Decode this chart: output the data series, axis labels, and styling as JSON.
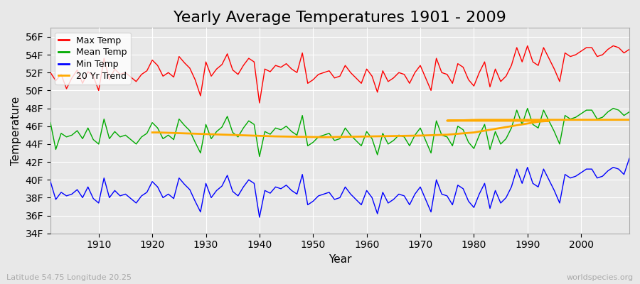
{
  "title": "Yearly Average Temperatures 1901 - 2009",
  "xlabel": "Year",
  "ylabel": "Temperature",
  "bg_color": "#e8e8e8",
  "plot_bg_color": "#e8e8e8",
  "grid_color": "#ffffff",
  "title_fontsize": 16,
  "axis_fontsize": 11,
  "tick_fontsize": 10,
  "legend_labels": [
    "Max Temp",
    "Mean Temp",
    "Min Temp",
    "20 Yr Trend"
  ],
  "legend_colors": [
    "#ff0000",
    "#00aa00",
    "#0000ff",
    "#ffaa00"
  ],
  "ylim": [
    34,
    57
  ],
  "yticks": [
    34,
    36,
    38,
    40,
    42,
    44,
    46,
    48,
    50,
    52,
    54,
    56
  ],
  "ytick_labels": [
    "34F",
    "36F",
    "38F",
    "40F",
    "42F",
    "44F",
    "46F",
    "48F",
    "50F",
    "52F",
    "54F",
    "56F"
  ],
  "xlim": [
    1901,
    2009
  ],
  "xticks": [
    1910,
    1920,
    1930,
    1940,
    1950,
    1960,
    1970,
    1980,
    1990,
    2000
  ],
  "years": [
    1901,
    1902,
    1903,
    1904,
    1905,
    1906,
    1907,
    1908,
    1909,
    1910,
    1911,
    1912,
    1913,
    1914,
    1915,
    1916,
    1917,
    1918,
    1919,
    1920,
    1921,
    1922,
    1923,
    1924,
    1925,
    1926,
    1927,
    1928,
    1929,
    1930,
    1931,
    1932,
    1933,
    1934,
    1935,
    1936,
    1937,
    1938,
    1939,
    1940,
    1941,
    1942,
    1943,
    1944,
    1945,
    1946,
    1947,
    1948,
    1949,
    1950,
    1951,
    1952,
    1953,
    1954,
    1955,
    1956,
    1957,
    1958,
    1959,
    1960,
    1961,
    1962,
    1963,
    1964,
    1965,
    1966,
    1967,
    1968,
    1969,
    1970,
    1971,
    1972,
    1973,
    1974,
    1975,
    1976,
    1977,
    1978,
    1979,
    1980,
    1981,
    1982,
    1983,
    1984,
    1985,
    1986,
    1987,
    1988,
    1989,
    1990,
    1991,
    1992,
    1993,
    1994,
    1995,
    1996,
    1997,
    1998,
    1999,
    2000,
    2001,
    2002,
    2003,
    2004,
    2005,
    2006,
    2007,
    2008,
    2009
  ],
  "max_temp": [
    52.0,
    51.1,
    51.8,
    50.2,
    51.4,
    52.3,
    50.8,
    52.1,
    51.6,
    50.0,
    53.6,
    51.2,
    52.4,
    51.8,
    52.0,
    51.5,
    51.0,
    51.8,
    52.2,
    53.4,
    52.8,
    51.6,
    52.0,
    51.5,
    53.8,
    53.1,
    52.5,
    51.2,
    49.4,
    53.2,
    51.6,
    52.4,
    52.9,
    54.1,
    52.3,
    51.8,
    52.8,
    53.6,
    53.2,
    48.6,
    52.4,
    52.1,
    52.8,
    52.6,
    53.0,
    52.4,
    52.0,
    54.2,
    50.8,
    51.2,
    51.8,
    52.0,
    52.2,
    51.4,
    51.6,
    52.8,
    52.0,
    51.4,
    50.8,
    52.4,
    51.6,
    49.8,
    52.2,
    51.0,
    51.4,
    52.0,
    51.8,
    50.8,
    52.0,
    52.8,
    51.4,
    50.0,
    53.6,
    52.0,
    51.8,
    50.8,
    53.0,
    52.6,
    51.2,
    50.5,
    52.0,
    53.2,
    50.4,
    52.4,
    51.0,
    51.6,
    52.8,
    54.8,
    53.2,
    55.0,
    53.2,
    52.8,
    54.8,
    53.6,
    52.4,
    51.0,
    54.2,
    53.8,
    54.0,
    54.4,
    54.8,
    54.8,
    53.8,
    54.0,
    54.6,
    55.0,
    54.8,
    54.2,
    54.6
  ],
  "mean_temp": [
    46.4,
    43.4,
    45.2,
    44.8,
    45.0,
    45.5,
    44.6,
    45.8,
    44.5,
    44.0,
    46.8,
    44.6,
    45.4,
    44.8,
    45.0,
    44.5,
    44.0,
    44.8,
    45.2,
    46.4,
    45.8,
    44.6,
    45.0,
    44.5,
    46.8,
    46.1,
    45.5,
    44.2,
    43.0,
    46.2,
    44.6,
    45.4,
    45.9,
    47.1,
    45.3,
    44.8,
    45.8,
    46.6,
    46.2,
    42.6,
    45.4,
    45.1,
    45.8,
    45.6,
    46.0,
    45.4,
    45.0,
    47.2,
    43.8,
    44.2,
    44.8,
    45.0,
    45.2,
    44.4,
    44.6,
    45.8,
    45.0,
    44.4,
    43.8,
    45.4,
    44.6,
    42.8,
    45.2,
    44.0,
    44.4,
    45.0,
    44.8,
    43.8,
    45.0,
    45.8,
    44.4,
    43.0,
    46.6,
    45.0,
    44.8,
    43.8,
    46.0,
    45.6,
    44.2,
    43.5,
    45.0,
    46.2,
    43.4,
    45.4,
    44.0,
    44.6,
    45.8,
    47.8,
    46.2,
    48.0,
    46.2,
    45.8,
    47.8,
    46.6,
    45.4,
    44.0,
    47.2,
    46.8,
    47.0,
    47.4,
    47.8,
    47.8,
    46.8,
    47.0,
    47.6,
    48.0,
    47.8,
    47.2,
    47.6
  ],
  "min_temp": [
    39.8,
    37.8,
    38.6,
    38.2,
    38.4,
    38.9,
    38.0,
    39.2,
    37.9,
    37.4,
    40.2,
    38.0,
    38.8,
    38.2,
    38.4,
    37.9,
    37.4,
    38.2,
    38.6,
    39.8,
    39.2,
    38.0,
    38.4,
    37.9,
    40.2,
    39.5,
    38.9,
    37.6,
    36.4,
    39.6,
    38.0,
    38.8,
    39.3,
    40.5,
    38.7,
    38.2,
    39.2,
    40.0,
    39.6,
    35.8,
    38.8,
    38.5,
    39.2,
    39.0,
    39.4,
    38.8,
    38.4,
    40.6,
    37.2,
    37.6,
    38.2,
    38.4,
    38.6,
    37.8,
    38.0,
    39.2,
    38.4,
    37.8,
    37.2,
    38.8,
    38.0,
    36.2,
    38.6,
    37.4,
    37.8,
    38.4,
    38.2,
    37.2,
    38.4,
    39.2,
    37.8,
    36.4,
    40.0,
    38.4,
    38.2,
    37.2,
    39.4,
    39.0,
    37.6,
    36.9,
    38.4,
    39.6,
    36.8,
    38.8,
    37.4,
    38.0,
    39.2,
    41.2,
    39.6,
    41.4,
    39.6,
    39.2,
    41.2,
    40.0,
    38.8,
    37.4,
    40.6,
    40.2,
    40.4,
    40.8,
    41.2,
    41.2,
    40.2,
    40.4,
    41.0,
    41.4,
    41.2,
    40.6,
    42.4
  ],
  "trend_start_year": 1920,
  "trend_years": [
    1920,
    1921,
    1922,
    1923,
    1924,
    1925,
    1926,
    1927,
    1928,
    1929,
    1930,
    1931,
    1932,
    1933,
    1934,
    1935,
    1936,
    1937,
    1938,
    1939,
    1940,
    1941,
    1942,
    1943,
    1944,
    1945,
    1946,
    1947,
    1948,
    1949,
    1950,
    1951,
    1952,
    1953,
    1954,
    1955,
    1956,
    1957,
    1958,
    1959,
    1960,
    1961,
    1962,
    1963,
    1964,
    1965,
    1966,
    1967,
    1968,
    1969,
    1970,
    1971,
    1972,
    1973,
    1974,
    1975,
    1976,
    1977,
    1978,
    1979,
    1980,
    1981,
    1982,
    1983,
    1984,
    1985,
    1986,
    1987,
    1988,
    1989,
    1990,
    1991,
    1992,
    1993,
    1994,
    1975,
    1977,
    1978,
    1979,
    1980,
    1981,
    1982,
    1983,
    1984,
    1985,
    1986,
    1987,
    1988,
    1989,
    2009
  ],
  "trend": [
    45.3,
    45.3,
    45.28,
    45.26,
    45.24,
    45.22,
    45.2,
    45.18,
    45.16,
    45.14,
    45.12,
    45.1,
    45.08,
    45.06,
    45.04,
    45.02,
    45.0,
    44.98,
    44.96,
    44.94,
    44.92,
    44.9,
    44.88,
    44.86,
    44.85,
    44.84,
    44.83,
    44.82,
    44.81,
    44.8,
    44.79,
    44.78,
    44.77,
    44.78,
    44.79,
    44.8,
    44.81,
    44.82,
    44.83,
    44.84,
    44.85,
    44.86,
    44.87,
    44.88,
    44.89,
    44.9,
    44.91,
    44.92,
    44.93,
    44.94,
    44.95,
    44.97,
    44.99,
    45.01,
    45.03,
    45.05,
    45.1,
    45.15,
    45.2,
    45.25,
    45.3,
    45.4,
    45.5,
    45.6,
    45.7,
    45.8,
    45.9,
    46.0,
    46.1,
    46.2,
    46.3,
    46.4,
    46.5,
    46.55,
    46.6,
    46.62,
    46.64,
    46.66,
    46.68,
    46.7,
    46.71,
    46.71,
    46.71,
    46.71,
    46.71,
    46.71,
    46.71,
    46.71,
    46.71,
    46.72
  ],
  "footer_left": "Latitude 54.75 Longitude 20.25",
  "footer_right": "worldspecies.org"
}
